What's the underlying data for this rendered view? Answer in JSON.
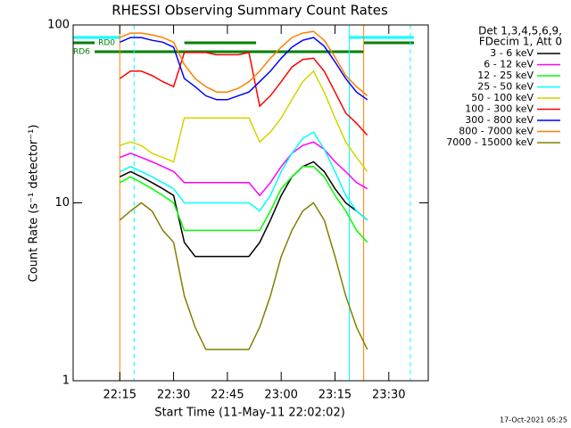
{
  "chart_data": {
    "type": "line",
    "title": "RHESSI Observing Summary Count Rates",
    "x_label": "Start Time (11-May-11 22:02:02)",
    "y_label": "Count Rate (s⁻¹ detector⁻¹)",
    "footer": "17-Oct-2021 05:25",
    "legend_header": [
      "Det 1,3,4,5,6,9,",
      "FDecim 1, Att 0"
    ],
    "log_y": true,
    "xlim": [
      "22:02",
      "23:41"
    ],
    "xticks": [
      "22:15",
      "22:30",
      "22:45",
      "23:00",
      "23:15",
      "23:30"
    ],
    "ylim": [
      1,
      100
    ],
    "yticks": [
      1,
      10,
      100
    ],
    "x": [
      "22:15",
      "22:18",
      "22:21",
      "22:24",
      "22:27",
      "22:30",
      "22:33",
      "22:36",
      "22:39",
      "22:42",
      "22:45",
      "22:48",
      "22:51",
      "22:54",
      "22:57",
      "23:00",
      "23:03",
      "23:06",
      "23:09",
      "23:12",
      "23:15",
      "23:18",
      "23:21",
      "23:24"
    ],
    "series": [
      {
        "name": "3 - 6 keV",
        "color": "#000000",
        "values": [
          14,
          15,
          14,
          13,
          12,
          11,
          6,
          5,
          5,
          5,
          5,
          5,
          5,
          6,
          8,
          11,
          14,
          16,
          17,
          15,
          12,
          10,
          9,
          8
        ]
      },
      {
        "name": "6 - 12 keV",
        "color": "#ff00ff",
        "values": [
          18,
          19,
          18,
          17,
          16,
          15,
          13,
          13,
          13,
          13,
          13,
          13,
          13,
          11,
          13,
          16,
          19,
          21,
          22,
          20,
          17,
          15,
          13,
          12
        ]
      },
      {
        "name": "12 - 25 keV",
        "color": "#00ff00",
        "values": [
          13,
          14,
          13,
          12,
          11,
          10,
          7,
          7,
          7,
          7,
          7,
          7,
          7,
          7,
          9,
          12,
          14,
          16,
          16,
          14,
          11,
          9,
          7,
          6
        ]
      },
      {
        "name": "25 - 50 keV",
        "color": "#00ffff",
        "values": [
          15,
          16,
          15,
          14,
          13,
          12,
          10,
          10,
          10,
          10,
          10,
          10,
          10,
          9,
          11,
          15,
          19,
          23,
          25,
          20,
          15,
          11,
          9,
          8
        ]
      },
      {
        "name": "50 - 100 keV",
        "color": "#d4d400",
        "values": [
          21,
          22,
          21,
          19,
          18,
          17,
          30,
          30,
          30,
          30,
          30,
          30,
          30,
          22,
          25,
          30,
          38,
          48,
          55,
          42,
          30,
          22,
          18,
          15
        ]
      },
      {
        "name": "100 - 300 keV",
        "color": "#ff0000",
        "values": [
          50,
          55,
          55,
          52,
          48,
          45,
          70,
          70,
          70,
          68,
          68,
          68,
          70,
          35,
          40,
          48,
          58,
          64,
          65,
          55,
          42,
          32,
          28,
          24
        ]
      },
      {
        "name": "300 - 800 keV",
        "color": "#0000ff",
        "values": [
          80,
          85,
          85,
          82,
          80,
          75,
          50,
          45,
          40,
          38,
          38,
          40,
          42,
          48,
          55,
          65,
          75,
          82,
          85,
          76,
          62,
          50,
          42,
          38
        ]
      },
      {
        "name": "800 - 7000 keV",
        "color": "#ff8000",
        "values": [
          85,
          90,
          90,
          88,
          85,
          80,
          60,
          50,
          45,
          42,
          42,
          44,
          48,
          55,
          65,
          75,
          85,
          90,
          92,
          82,
          66,
          52,
          45,
          40
        ]
      },
      {
        "name": "7000 - 15000 keV",
        "color": "#808000",
        "values": [
          8,
          9,
          10,
          9,
          7,
          6,
          3,
          2,
          1.5,
          1.5,
          1.5,
          1.5,
          1.5,
          2,
          3,
          5,
          7,
          9,
          10,
          8,
          5,
          3,
          2,
          1.5
        ]
      }
    ],
    "flags": [
      {
        "color": "#00ffff",
        "segments": [
          [
            "22:02",
            "22:15"
          ],
          [
            "23:19",
            "23:37"
          ]
        ]
      },
      {
        "label": "RD0",
        "color": "#008000",
        "segments": [
          [
            "22:02",
            "22:08"
          ],
          [
            "22:33",
            "22:53"
          ],
          [
            "23:23",
            "23:37"
          ]
        ]
      },
      {
        "label": "RD6",
        "color": "#008000",
        "segments": [
          [
            "22:08",
            "23:23"
          ]
        ]
      }
    ],
    "vlines": [
      {
        "x": "22:15",
        "color": "#ff8000",
        "dash": false
      },
      {
        "x": "22:19",
        "color": "#00ffff",
        "dash": true
      },
      {
        "x": "23:19",
        "color": "#00ffff",
        "dash": false
      },
      {
        "x": "23:23",
        "color": "#ff8000",
        "dash": false
      },
      {
        "x": "23:36",
        "color": "#00ffff",
        "dash": true
      }
    ]
  }
}
